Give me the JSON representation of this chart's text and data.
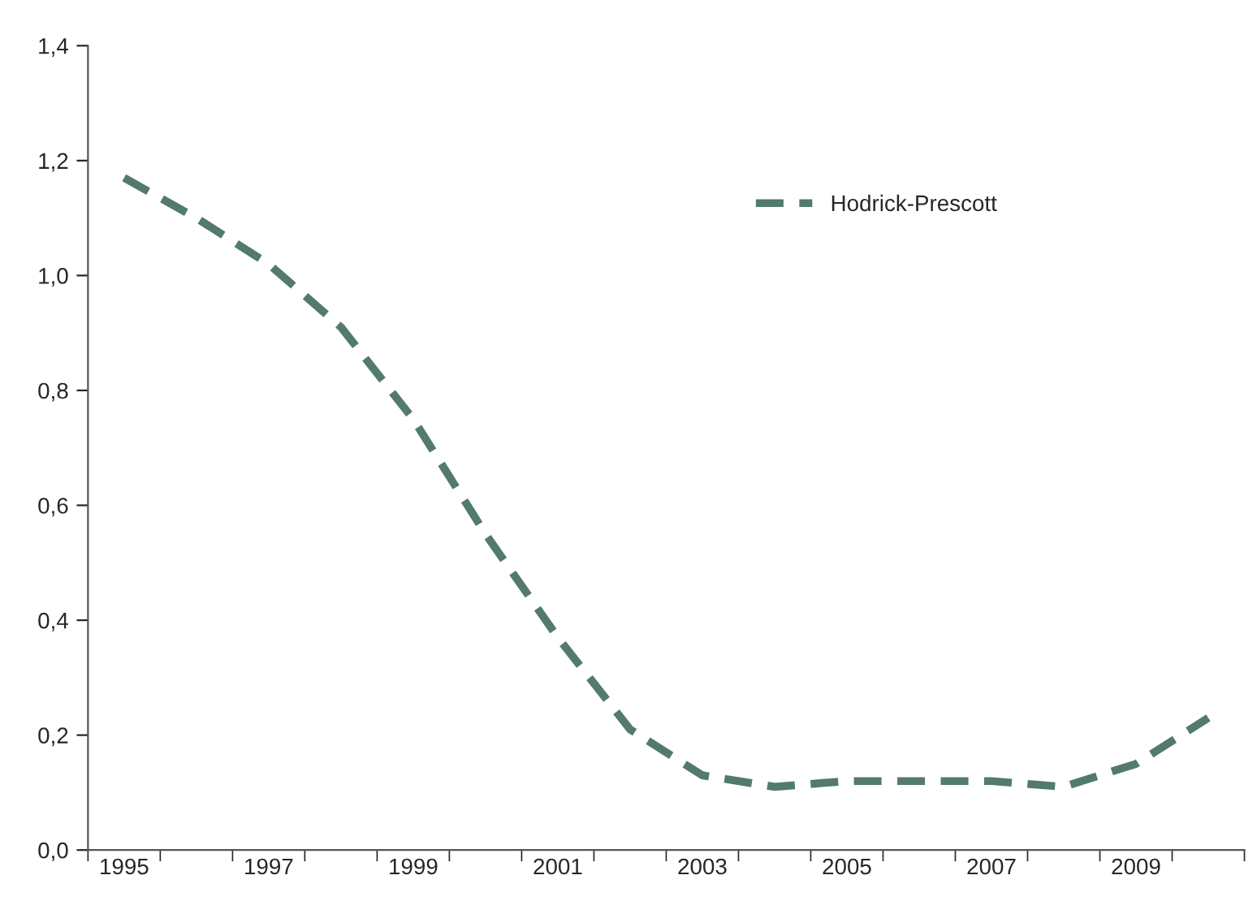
{
  "chart_data": {
    "type": "line",
    "categories": [
      "1995",
      null,
      "1997",
      null,
      "1999",
      null,
      "2001",
      null,
      "2003",
      null,
      "2005",
      null,
      "2007",
      null,
      "2009",
      null
    ],
    "series": [
      {
        "name": "Hodrick-Prescott",
        "color": "#527a6e",
        "values": [
          1.17,
          1.1,
          1.02,
          0.91,
          0.75,
          0.55,
          0.37,
          0.21,
          0.13,
          0.11,
          0.12,
          0.12,
          0.12,
          0.11,
          0.15,
          0.23
        ]
      }
    ],
    "ylim": [
      0,
      1.4
    ],
    "yticks": [
      {
        "value": 0,
        "label": "0,0"
      },
      {
        "value": 0.2,
        "label": "0,2"
      },
      {
        "value": 0.4,
        "label": "0,4"
      },
      {
        "value": 0.6,
        "label": "0,6"
      },
      {
        "value": 0.8,
        "label": "0,8"
      },
      {
        "value": 1.0,
        "label": "1,0"
      },
      {
        "value": 1.2,
        "label": "1,2"
      },
      {
        "value": 1.4,
        "label": "1,4"
      }
    ],
    "grid": false,
    "legend": "top right",
    "line_style": "dashed",
    "marker": "none"
  }
}
